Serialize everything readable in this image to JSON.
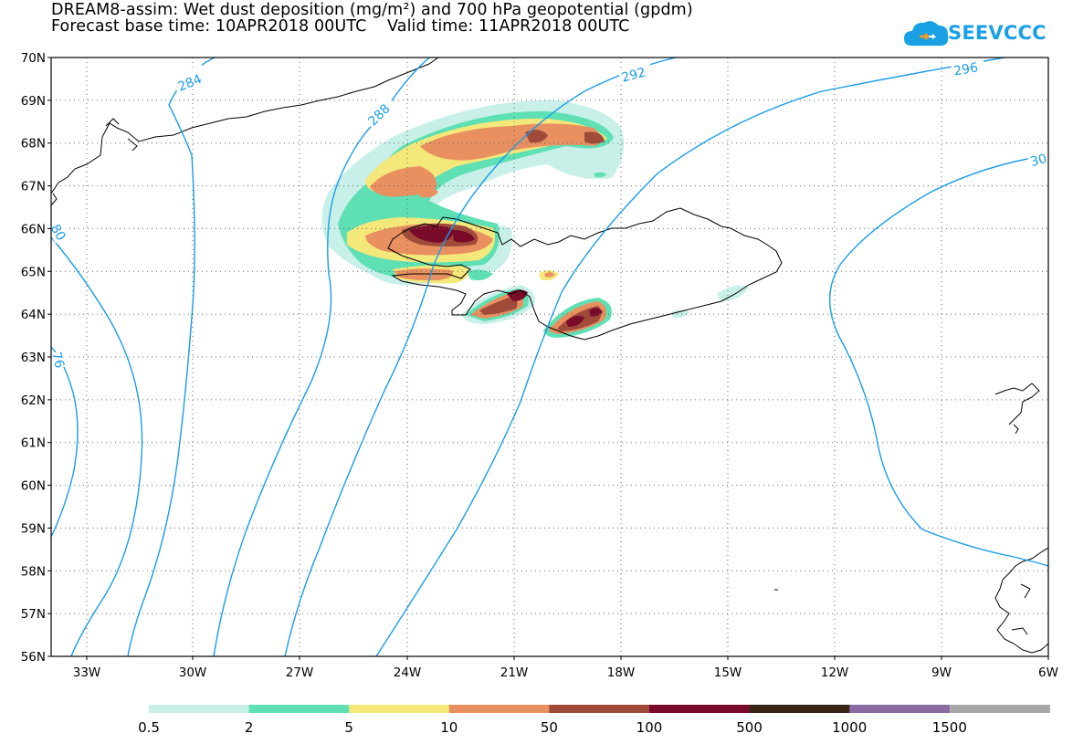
{
  "title_line1": "DREAM8-assim: Wet dust deposition (mg/m²) and 700 hPa geopotential (gpdm)",
  "title_line2": "Forecast base time: 10APR2018 00UTC    Valid time: 11APR2018 00UTC",
  "logo_text": "SEEVCCC",
  "map": {
    "lat_labels": [
      "70N",
      "69N",
      "68N",
      "67N",
      "66N",
      "65N",
      "64N",
      "63N",
      "62N",
      "61N",
      "60N",
      "59N",
      "58N",
      "57N",
      "56N"
    ],
    "lon_labels": [
      "33W",
      "30W",
      "27W",
      "24W",
      "21W",
      "18W",
      "15W",
      "12W",
      "9W",
      "6W"
    ],
    "contour_labels": [
      "284",
      "288",
      "292",
      "296",
      "30",
      "80",
      "76"
    ],
    "colors": {
      "contour": "#1a9de8",
      "land_outline": "#000000",
      "grid": "#888888"
    }
  },
  "legend": {
    "labels": [
      "0.5",
      "2",
      "5",
      "10",
      "50",
      "100",
      "500",
      "1000",
      "1500"
    ],
    "colors": [
      "#c8f0e8",
      "#5ee0b4",
      "#f5e87a",
      "#e89060",
      "#a04a3a",
      "#7a0a2a",
      "#3a2418",
      "#8a6aa0",
      "#a8a8a8"
    ]
  }
}
